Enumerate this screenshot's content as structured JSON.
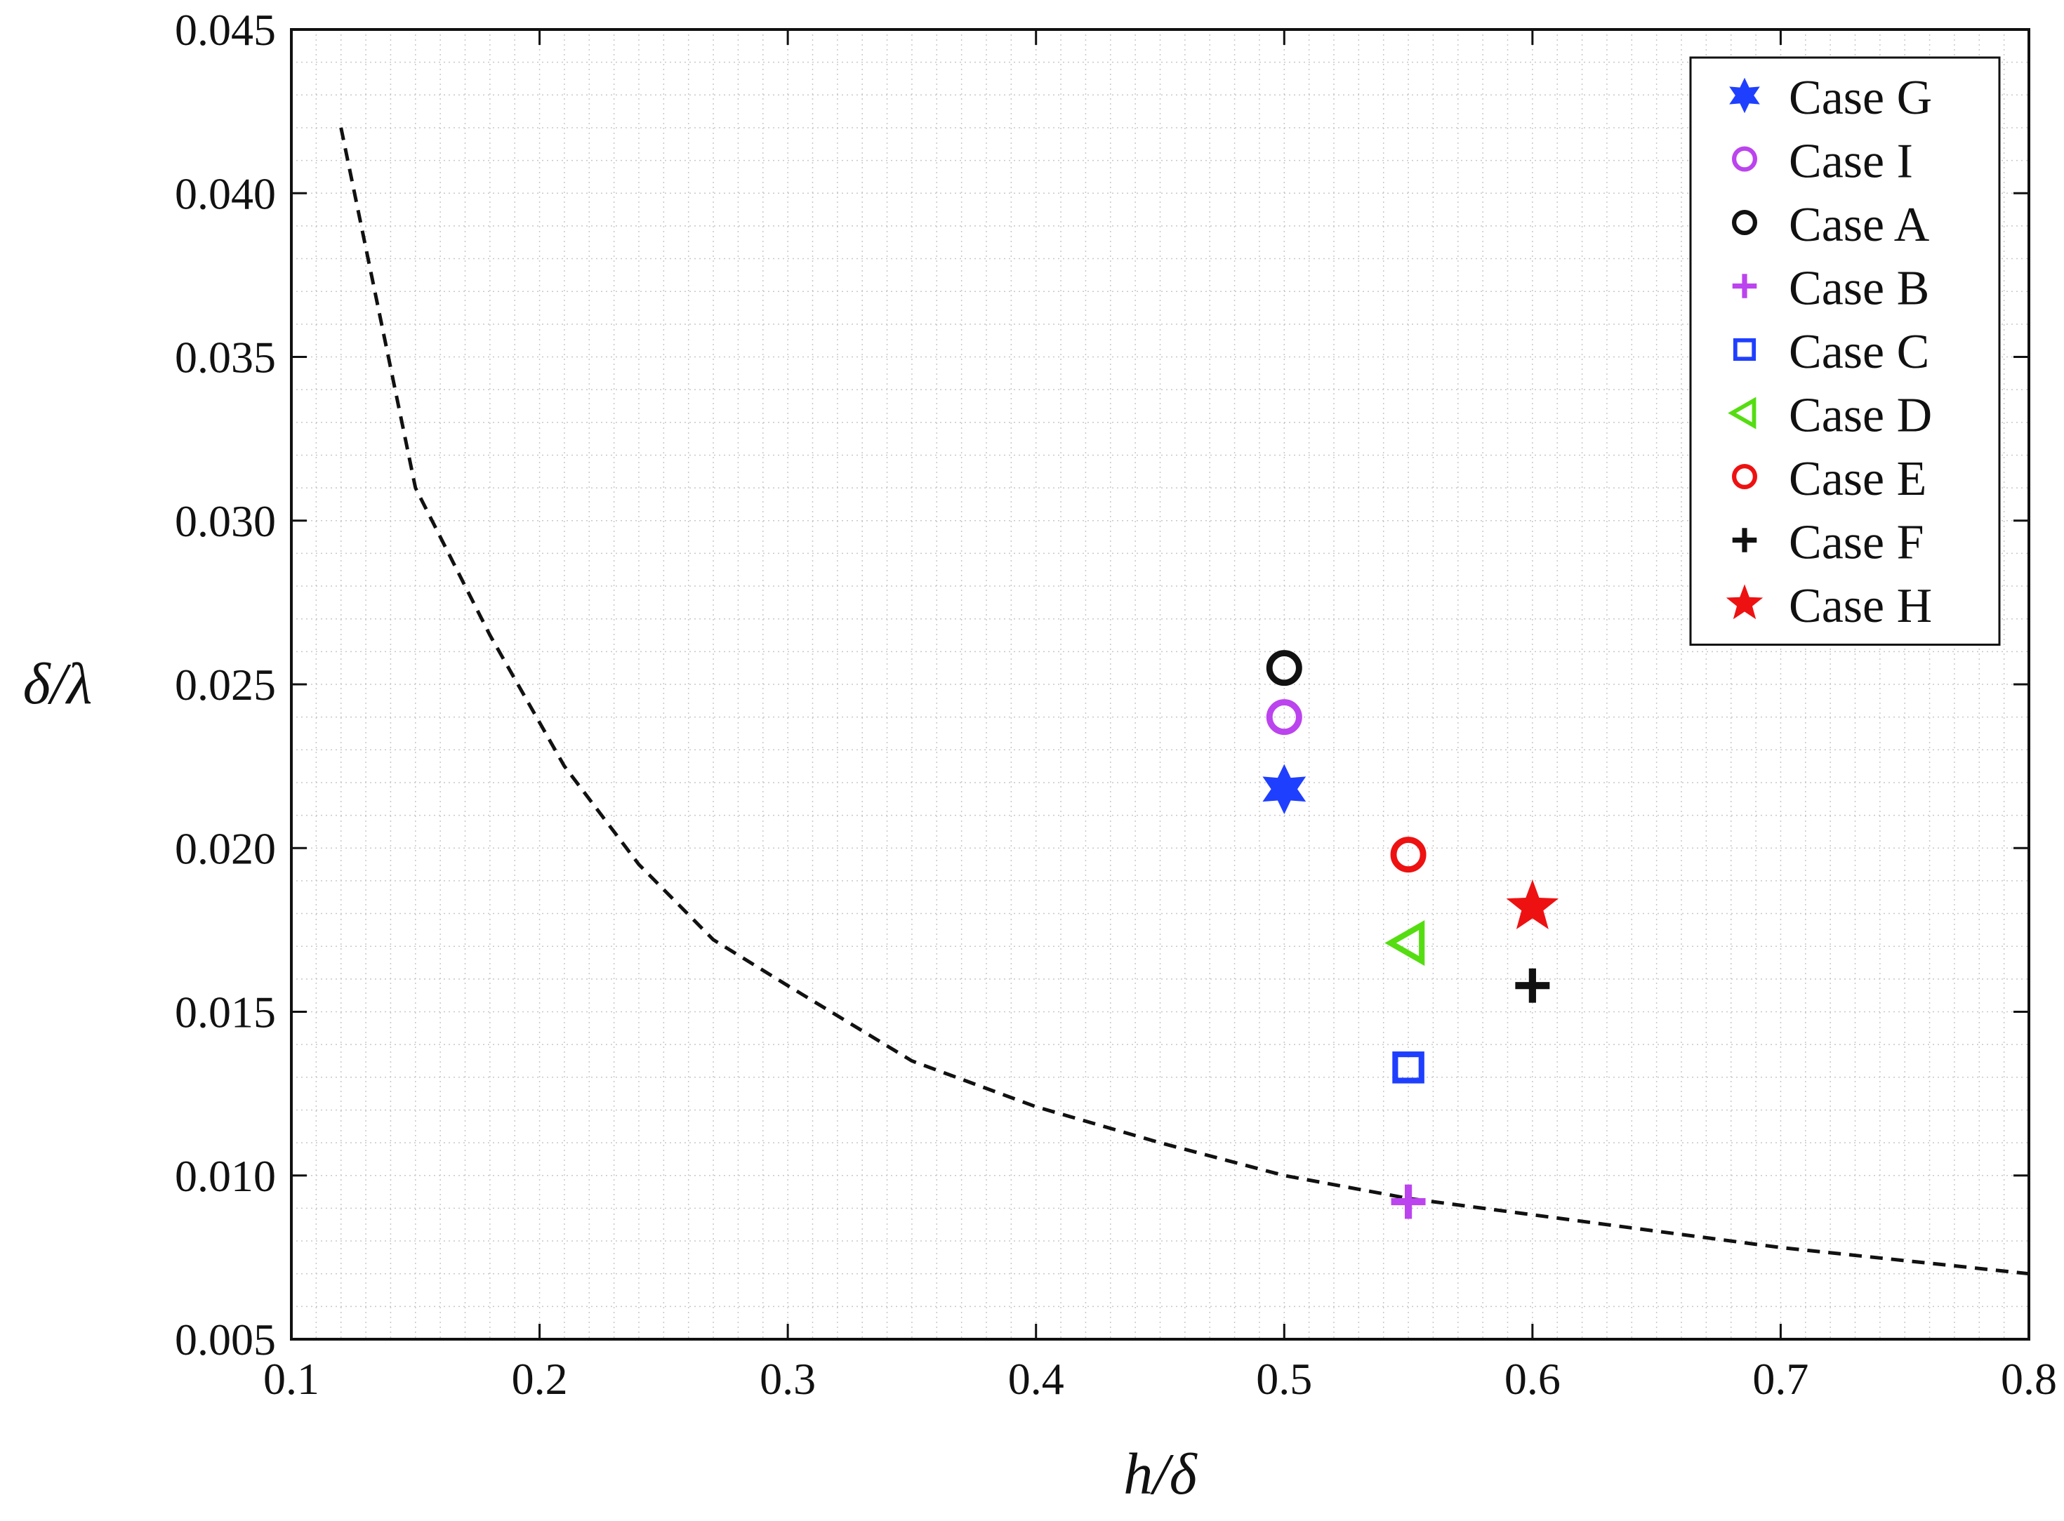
{
  "chart_data": {
    "type": "scatter",
    "title": "",
    "xlabel": "h/δ",
    "ylabel": "δ/λ",
    "xlim": [
      0.1,
      0.8
    ],
    "ylim": [
      0.005,
      0.045
    ],
    "xticks": [
      "0.1",
      "0.2",
      "0.3",
      "0.4",
      "0.5",
      "0.6",
      "0.7",
      "0.8"
    ],
    "yticks": [
      "0.005",
      "0.010",
      "0.015",
      "0.020",
      "0.025",
      "0.030",
      "0.035",
      "0.040",
      "0.045"
    ],
    "grid": "minor dotted",
    "legend_position": "top-right",
    "curve": {
      "style": "dashed",
      "color": "#111111",
      "x": [
        0.12,
        0.15,
        0.18,
        0.21,
        0.24,
        0.27,
        0.3,
        0.35,
        0.4,
        0.45,
        0.5,
        0.55,
        0.6,
        0.65,
        0.7,
        0.75,
        0.8
      ],
      "y": [
        0.042,
        0.031,
        0.0265,
        0.0225,
        0.0195,
        0.0172,
        0.0158,
        0.0135,
        0.0121,
        0.011,
        0.01,
        0.0093,
        0.0088,
        0.0083,
        0.0078,
        0.0074,
        0.007
      ]
    },
    "series": [
      {
        "name": "Case G",
        "marker": "star6",
        "color": "#1f3fff",
        "x": 0.5,
        "y": 0.0218
      },
      {
        "name": "Case I",
        "marker": "circle",
        "color": "#bb44ee",
        "x": 0.5,
        "y": 0.024
      },
      {
        "name": "Case A",
        "marker": "circle",
        "color": "#111111",
        "x": 0.5,
        "y": 0.0255
      },
      {
        "name": "Case B",
        "marker": "plus",
        "color": "#bb44ee",
        "x": 0.55,
        "y": 0.0092
      },
      {
        "name": "Case C",
        "marker": "square",
        "color": "#1f3fff",
        "x": 0.55,
        "y": 0.0133
      },
      {
        "name": "Case D",
        "marker": "triangle-left",
        "color": "#55dd11",
        "x": 0.55,
        "y": 0.0171
      },
      {
        "name": "Case E",
        "marker": "circle",
        "color": "#ee1111",
        "x": 0.55,
        "y": 0.0198
      },
      {
        "name": "Case F",
        "marker": "plus",
        "color": "#111111",
        "x": 0.6,
        "y": 0.0158
      },
      {
        "name": "Case H",
        "marker": "star5",
        "color": "#ee1111",
        "x": 0.6,
        "y": 0.0182
      }
    ]
  }
}
